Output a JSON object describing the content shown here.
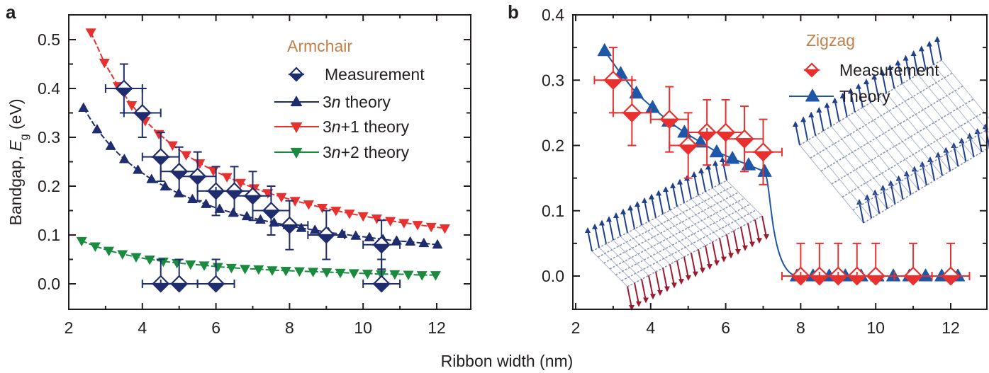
{
  "figure": {
    "shared_xlabel": "Ribbon width (nm)"
  },
  "chart_data": [
    {
      "panel": "a",
      "type": "scatter",
      "title": "Armchair",
      "xlabel": "Ribbon width (nm)",
      "ylabel_prefix": "Bandgap, ",
      "ylabel_symbol": "E",
      "ylabel_subscript": "g",
      "ylabel_suffix": " (eV)",
      "xlim": [
        2,
        13
      ],
      "ylim": [
        -0.05,
        0.55
      ],
      "xticks": [
        2,
        4,
        6,
        8,
        10,
        12
      ],
      "xtick_labels": [
        "2",
        "4",
        "6",
        "8",
        "10",
        "12"
      ],
      "yticks": [
        0.0,
        0.1,
        0.2,
        0.3,
        0.4,
        0.5
      ],
      "ytick_labels": [
        "0.0",
        "0.1",
        "0.2",
        "0.3",
        "0.4",
        "0.5"
      ],
      "grid": false,
      "legend_position": "top-right",
      "colors": {
        "measurement": "#1f2d6e",
        "3n": "#1f2d6e",
        "3n+1": "#e8302f",
        "3n+2": "#1a8a3e",
        "title": "#c0804a"
      },
      "legend": [
        {
          "key": "measurement",
          "label_parts": [
            "Measurement"
          ],
          "marker": "half-filled-diamond"
        },
        {
          "key": "3n",
          "label_parts": [
            "3",
            "n",
            " theory"
          ],
          "marker": "triangle-up"
        },
        {
          "key": "3n+1",
          "label_parts": [
            "3",
            "n",
            "+1 theory"
          ],
          "marker": "triangle-down"
        },
        {
          "key": "3n+2",
          "label_parts": [
            "3",
            "n",
            "+2 theory"
          ],
          "marker": "triangle-down"
        }
      ],
      "measurement": [
        {
          "x": 3.5,
          "y": 0.4,
          "xerr": 0.5,
          "yerr": 0.05
        },
        {
          "x": 4.0,
          "y": 0.35,
          "xerr": 0.5,
          "yerr": 0.05
        },
        {
          "x": 4.5,
          "y": 0.26,
          "xerr": 0.5,
          "yerr": 0.05
        },
        {
          "x": 5.0,
          "y": 0.23,
          "xerr": 0.5,
          "yerr": 0.05
        },
        {
          "x": 5.5,
          "y": 0.22,
          "xerr": 0.5,
          "yerr": 0.05
        },
        {
          "x": 6.0,
          "y": 0.19,
          "xerr": 0.5,
          "yerr": 0.05
        },
        {
          "x": 6.5,
          "y": 0.19,
          "xerr": 0.5,
          "yerr": 0.05
        },
        {
          "x": 7.0,
          "y": 0.18,
          "xerr": 0.5,
          "yerr": 0.05
        },
        {
          "x": 7.5,
          "y": 0.15,
          "xerr": 0.5,
          "yerr": 0.05
        },
        {
          "x": 8.0,
          "y": 0.12,
          "xerr": 0.5,
          "yerr": 0.05
        },
        {
          "x": 9.0,
          "y": 0.1,
          "xerr": 0.5,
          "yerr": 0.05
        },
        {
          "x": 10.5,
          "y": 0.08,
          "xerr": 0.5,
          "yerr": 0.05
        },
        {
          "x": 4.5,
          "y": 0.0,
          "xerr": 0.5,
          "yerr_up": 0.05
        },
        {
          "x": 5.0,
          "y": 0.0,
          "xerr": 0.5,
          "yerr_up": 0.05
        },
        {
          "x": 6.0,
          "y": 0.0,
          "xerr": 0.5,
          "yerr_up": 0.05
        },
        {
          "x": 10.5,
          "y": 0.0,
          "xerr": 0.5,
          "yerr_up": 0.05
        }
      ],
      "series": [
        {
          "name": "3n theory",
          "key": "3n",
          "x": [
            2.4,
            2.77,
            3.14,
            3.51,
            3.88,
            4.25,
            4.62,
            4.99,
            5.36,
            5.73,
            6.1,
            6.47,
            6.84,
            7.21,
            7.58,
            7.95,
            8.32,
            8.69,
            9.06,
            9.43,
            9.8,
            10.17,
            10.54,
            10.91,
            11.28,
            11.65,
            12.02
          ],
          "y": [
            0.36,
            0.316,
            0.282,
            0.255,
            0.233,
            0.214,
            0.199,
            0.185,
            0.173,
            0.163,
            0.153,
            0.145,
            0.138,
            0.131,
            0.125,
            0.12,
            0.114,
            0.11,
            0.105,
            0.102,
            0.098,
            0.095,
            0.091,
            0.088,
            0.086,
            0.083,
            0.08
          ]
        },
        {
          "name": "3n+1 theory",
          "key": "3n+1",
          "x": [
            2.6,
            2.97,
            3.34,
            3.71,
            4.08,
            4.45,
            4.82,
            5.19,
            5.56,
            5.93,
            6.3,
            6.67,
            7.04,
            7.41,
            7.78,
            8.15,
            8.52,
            8.89,
            9.26,
            9.63,
            10.0,
            10.37,
            10.74,
            11.11,
            11.48,
            11.85,
            12.22
          ],
          "y": [
            0.515,
            0.453,
            0.405,
            0.366,
            0.334,
            0.307,
            0.284,
            0.264,
            0.247,
            0.232,
            0.219,
            0.207,
            0.196,
            0.186,
            0.178,
            0.17,
            0.163,
            0.156,
            0.15,
            0.144,
            0.139,
            0.134,
            0.129,
            0.125,
            0.121,
            0.117,
            0.114
          ]
        },
        {
          "name": "3n+2 theory",
          "key": "3n+2",
          "x": [
            2.35,
            2.72,
            3.09,
            3.46,
            3.83,
            4.2,
            4.57,
            4.94,
            5.31,
            5.68,
            6.05,
            6.42,
            6.79,
            7.16,
            7.53,
            7.9,
            8.27,
            8.64,
            9.01,
            9.38,
            9.75,
            10.12,
            10.49,
            10.86,
            11.23,
            11.6,
            11.97
          ],
          "y": [
            0.088,
            0.077,
            0.068,
            0.061,
            0.055,
            0.05,
            0.046,
            0.043,
            0.04,
            0.038,
            0.035,
            0.033,
            0.031,
            0.03,
            0.028,
            0.027,
            0.026,
            0.025,
            0.024,
            0.023,
            0.022,
            0.021,
            0.02,
            0.02,
            0.019,
            0.018,
            0.018
          ]
        }
      ]
    },
    {
      "panel": "b",
      "type": "scatter",
      "title": "Zigzag",
      "xlabel": "Ribbon width (nm)",
      "xlim": [
        2,
        12.9
      ],
      "ylim": [
        -0.05,
        0.4
      ],
      "xticks": [
        2,
        4,
        6,
        8,
        10,
        12
      ],
      "xtick_labels": [
        "2",
        "4",
        "6",
        "8",
        "10",
        "12"
      ],
      "yticks": [
        0.0,
        0.1,
        0.2,
        0.3,
        0.4
      ],
      "ytick_labels": [
        "0.0",
        "0.1",
        "0.2",
        "0.3",
        "0.4"
      ],
      "grid": false,
      "legend_position": "top-right",
      "colors": {
        "measurement": "#e8302f",
        "theory": "#1e56a8",
        "title": "#c0804a",
        "spin_up": "#1f3f8f",
        "spin_down": "#9b1b30",
        "lattice": "#8a94b8"
      },
      "legend": [
        {
          "key": "measurement",
          "label": "Measurement",
          "marker": "half-filled-diamond"
        },
        {
          "key": "theory",
          "label": "Theory",
          "marker": "triangle-up"
        }
      ],
      "measurement": [
        {
          "x": 3.0,
          "y": 0.3,
          "xerr": 0.5,
          "yerr": 0.05
        },
        {
          "x": 3.5,
          "y": 0.25,
          "xerr": 0.5,
          "yerr": 0.05
        },
        {
          "x": 4.5,
          "y": 0.24,
          "xerr": 0.5,
          "yerr": 0.05
        },
        {
          "x": 5.0,
          "y": 0.2,
          "xerr": 0.5,
          "yerr": 0.05
        },
        {
          "x": 5.5,
          "y": 0.22,
          "xerr": 0.5,
          "yerr": 0.05
        },
        {
          "x": 6.0,
          "y": 0.22,
          "xerr": 0.5,
          "yerr": 0.05
        },
        {
          "x": 6.5,
          "y": 0.21,
          "xerr": 0.5,
          "yerr": 0.05
        },
        {
          "x": 7.0,
          "y": 0.19,
          "xerr": 0.5,
          "yerr": 0.05
        },
        {
          "x": 8.0,
          "y": 0.0,
          "xerr": 0.5,
          "yerr_up": 0.05
        },
        {
          "x": 8.5,
          "y": 0.0,
          "xerr": 0.5,
          "yerr_up": 0.05
        },
        {
          "x": 9.0,
          "y": 0.0,
          "xerr": 0.5,
          "yerr_up": 0.05
        },
        {
          "x": 9.5,
          "y": 0.0,
          "xerr": 0.5,
          "yerr_up": 0.05
        },
        {
          "x": 10.0,
          "y": 0.0,
          "xerr": 0.5,
          "yerr_up": 0.05
        },
        {
          "x": 11.0,
          "y": 0.0,
          "xerr": 0.5,
          "yerr_up": 0.05
        },
        {
          "x": 12.0,
          "y": 0.0,
          "xerr": 0.5,
          "yerr_up": 0.05
        }
      ],
      "series": [
        {
          "name": "Theory",
          "key": "theory",
          "x": [
            2.77,
            3.2,
            3.62,
            4.05,
            4.48,
            4.9,
            5.33,
            5.76,
            6.18,
            6.61,
            7.04,
            7.9,
            8.33,
            8.76,
            9.19,
            9.61,
            10.04,
            10.47,
            10.9,
            11.33,
            11.76,
            12.19
          ],
          "y": [
            0.345,
            0.31,
            0.28,
            0.258,
            0.237,
            0.22,
            0.205,
            0.19,
            0.18,
            0.17,
            0.16,
            0.0,
            0.0,
            0.0,
            0.0,
            0.0,
            0.0,
            0.0,
            0.0,
            0.0,
            0.0,
            0.0
          ]
        }
      ],
      "transition": {
        "from_x": 7.04,
        "from_y": 0.16,
        "to_x": 7.9,
        "to_y": 0.0
      },
      "insets": [
        {
          "name": "antiferromagnetic-ribbon",
          "description": "ribbon with opposite edge spins (up on one edge, down on other)"
        },
        {
          "name": "ferromagnetic-ribbon",
          "description": "ribbon with parallel edge spins (both up)"
        }
      ]
    }
  ]
}
